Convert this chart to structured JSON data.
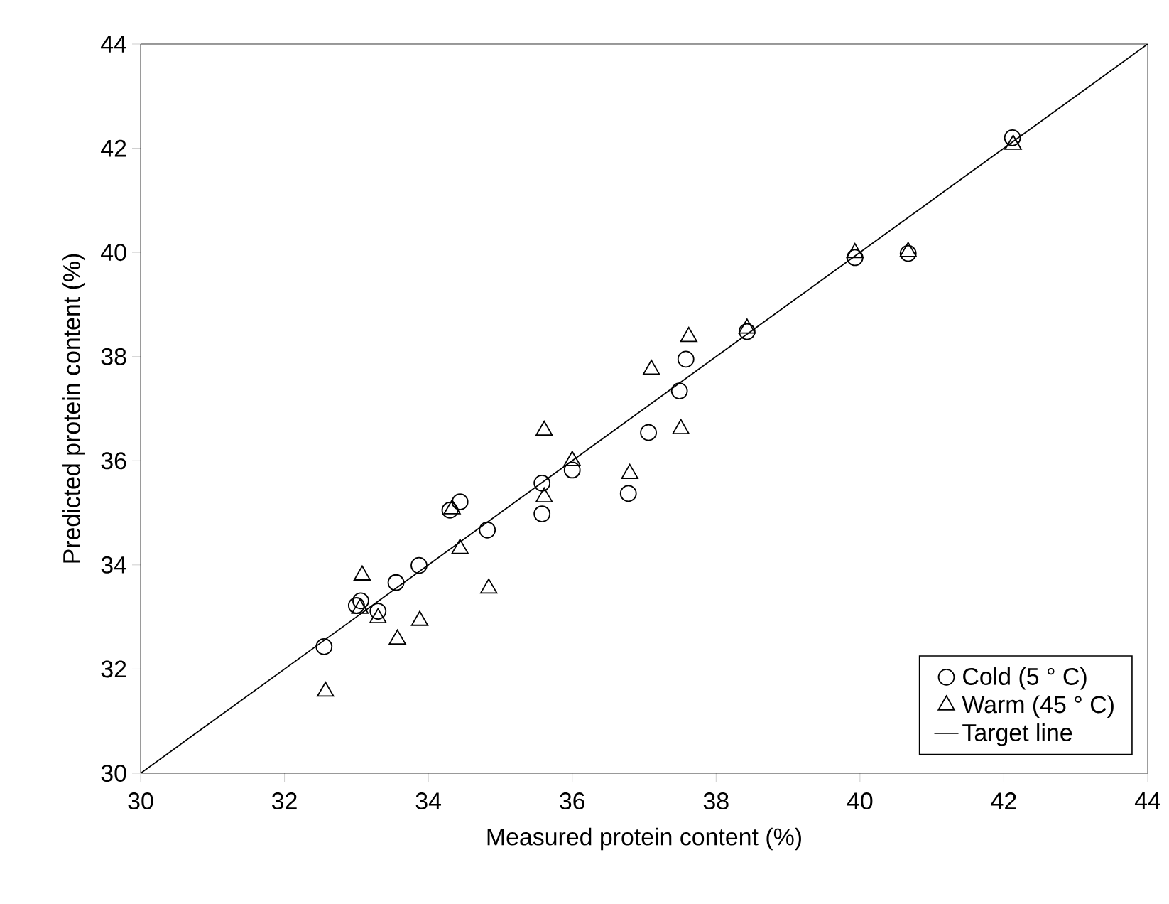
{
  "chart_data": {
    "type": "scatter",
    "xlabel": "Measured protein content (%)",
    "ylabel": "Predicted protein content (%)",
    "xlim": [
      30,
      44
    ],
    "ylim": [
      30,
      44
    ],
    "xticks": [
      30,
      32,
      34,
      36,
      38,
      40,
      42,
      44
    ],
    "yticks": [
      30,
      32,
      34,
      36,
      38,
      40,
      42,
      44
    ],
    "grid": false,
    "legend": "bottom right",
    "series": [
      {
        "name": "Cold (5 ° C)",
        "color": "#000000",
        "marker": "circle",
        "x": [
          32.55,
          33.06,
          33.0,
          33.3,
          33.55,
          33.87,
          34.3,
          34.44,
          34.82,
          35.58,
          35.58,
          36.0,
          36.78,
          37.06,
          37.49,
          37.58,
          38.43,
          39.93,
          40.67,
          42.12
        ],
        "values": [
          32.43,
          33.31,
          33.22,
          33.11,
          33.66,
          33.99,
          35.05,
          35.21,
          34.67,
          35.57,
          34.98,
          35.82,
          35.37,
          36.54,
          37.34,
          37.95,
          38.48,
          39.9,
          39.98,
          42.2
        ]
      },
      {
        "name": "Warm (45 ° C)",
        "color": "#000000",
        "marker": "triangle",
        "x": [
          32.57,
          33.08,
          33.05,
          33.3,
          33.57,
          33.88,
          34.44,
          34.84,
          34.33,
          35.61,
          35.61,
          36.0,
          36.8,
          37.1,
          37.51,
          37.62,
          38.43,
          39.93,
          40.67,
          42.13
        ],
        "values": [
          31.57,
          33.8,
          33.16,
          32.98,
          32.57,
          32.93,
          34.31,
          33.55,
          35.07,
          35.3,
          36.58,
          36.0,
          35.75,
          37.75,
          36.61,
          38.38,
          38.54,
          39.99,
          40.01,
          42.07
        ]
      },
      {
        "name": "Target line",
        "type": "line",
        "color": "#000000",
        "marker": "none",
        "line_style": "solid",
        "x": [
          30,
          44
        ],
        "values": [
          30,
          44
        ]
      }
    ]
  }
}
